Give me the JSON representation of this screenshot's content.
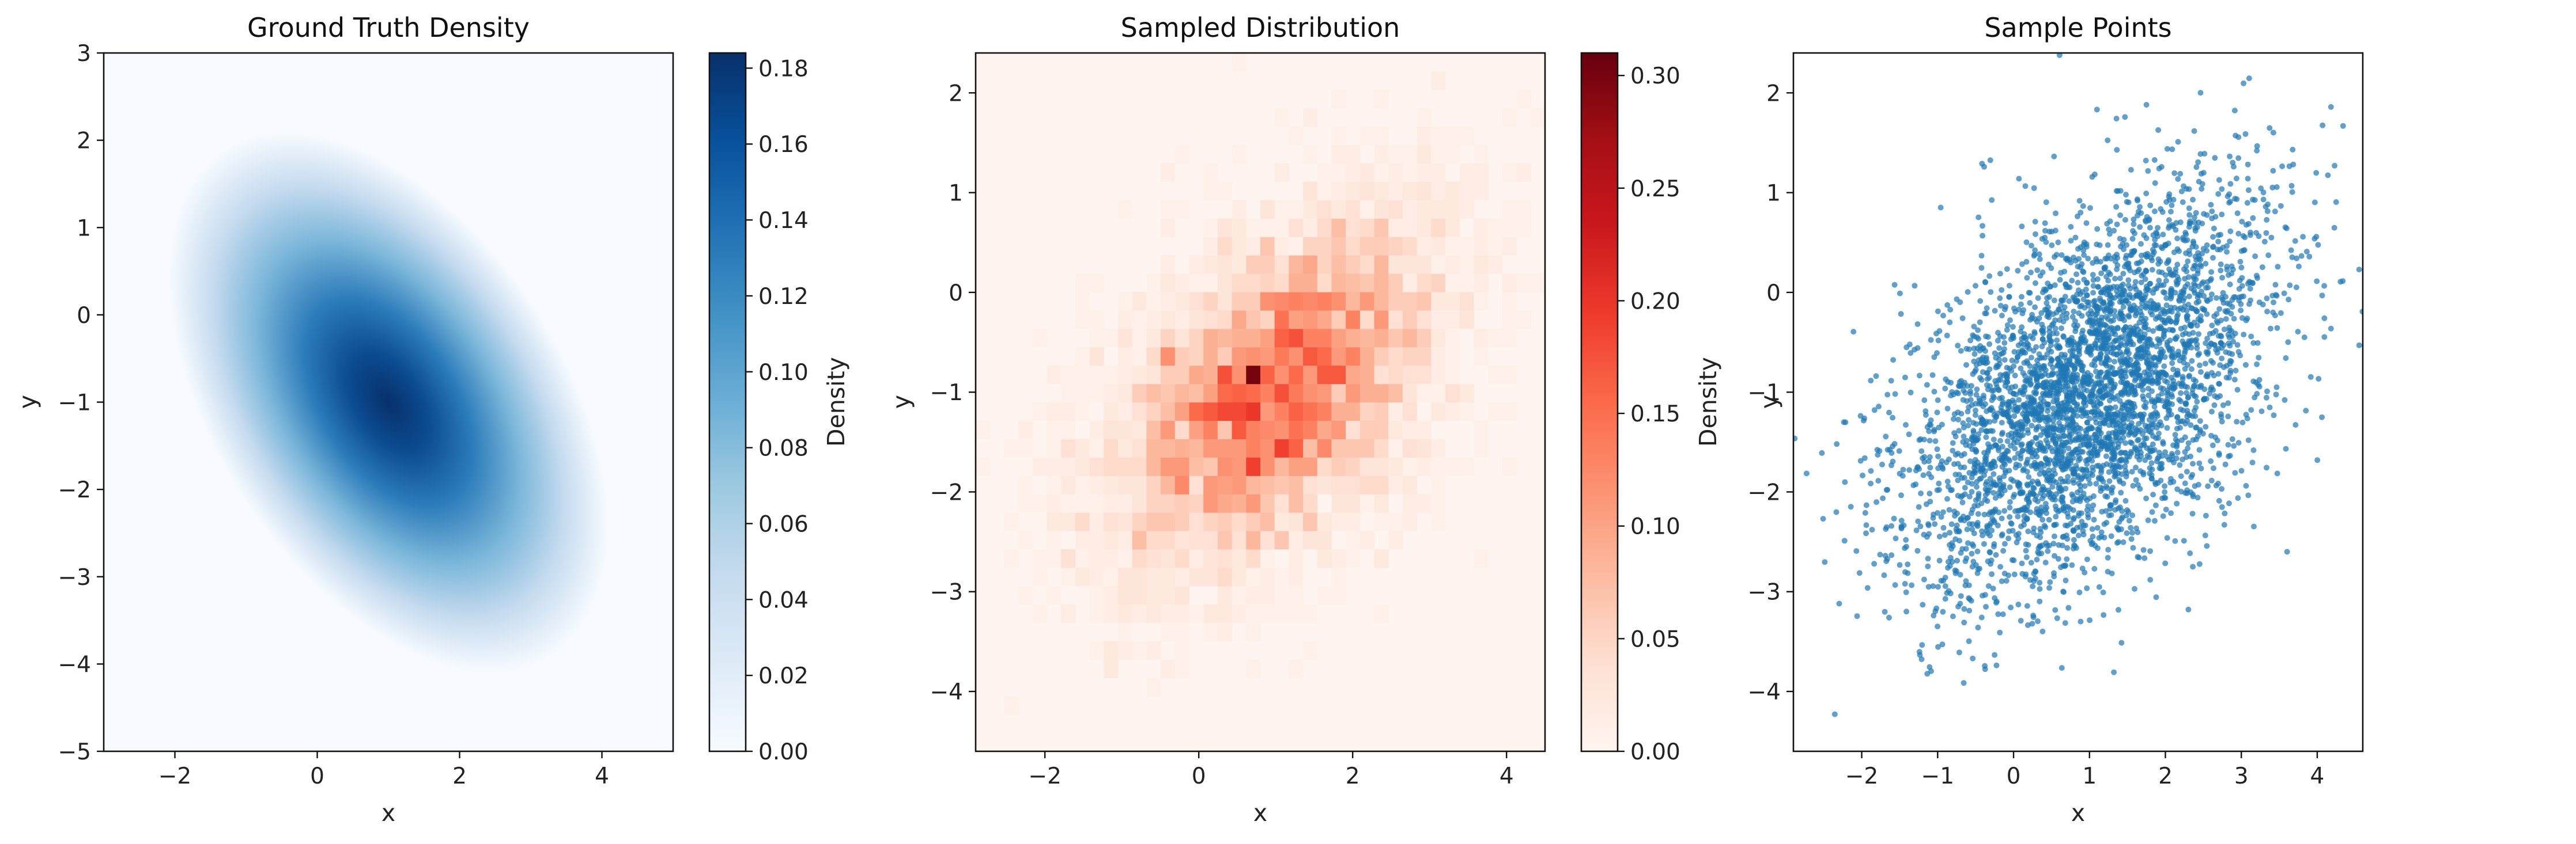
{
  "chart_data": [
    {
      "type": "heatmap",
      "title": "Ground Truth Density",
      "xlabel": "x",
      "ylabel": "y",
      "xlim": [
        -3,
        5
      ],
      "ylim": [
        -5,
        3
      ],
      "xticks": [
        -2,
        0,
        2,
        4
      ],
      "yticks": [
        -5,
        -4,
        -3,
        -2,
        -1,
        0,
        1,
        2,
        3
      ],
      "colormap": "Blues",
      "colorbar": {
        "label": "Density",
        "ticks": [
          0.0,
          0.02,
          0.04,
          0.06,
          0.08,
          0.1,
          0.12,
          0.14,
          0.16,
          0.18
        ],
        "range": [
          0.0,
          0.184
        ]
      },
      "peak": {
        "x": 1,
        "y": -1,
        "value": 0.184
      },
      "color_low": "#f7fbff",
      "color_high": "#08306b"
    },
    {
      "type": "heatmap",
      "title": "Sampled Distribution",
      "xlabel": "x",
      "ylabel": "y",
      "xlim": [
        -2.9,
        4.5
      ],
      "ylim": [
        -4.6,
        2.4
      ],
      "xticks": [
        -2,
        0,
        2,
        4
      ],
      "yticks": [
        -4,
        -3,
        -2,
        -1,
        0,
        1,
        2
      ],
      "colormap": "Reds",
      "colorbar": {
        "label": "Density",
        "ticks": [
          0.0,
          0.05,
          0.1,
          0.15,
          0.2,
          0.25,
          0.3
        ],
        "range": [
          0.0,
          0.31
        ]
      },
      "color_low": "#fff5f0",
      "color_high": "#67000d"
    },
    {
      "type": "scatter",
      "title": "Sample Points",
      "xlabel": "x",
      "ylabel": "y",
      "xlim": [
        -2.9,
        4.6
      ],
      "ylim": [
        -4.6,
        2.4
      ],
      "xticks": [
        -2,
        -1,
        0,
        1,
        2,
        3,
        4
      ],
      "yticks": [
        -4,
        -3,
        -2,
        -1,
        0,
        1,
        2
      ],
      "point_color": "#1f77b4",
      "distribution": {
        "mean": [
          1,
          -1
        ],
        "std": [
          1.2,
          1.0
        ],
        "correlation": 0.5,
        "n_points": 4000
      }
    }
  ]
}
